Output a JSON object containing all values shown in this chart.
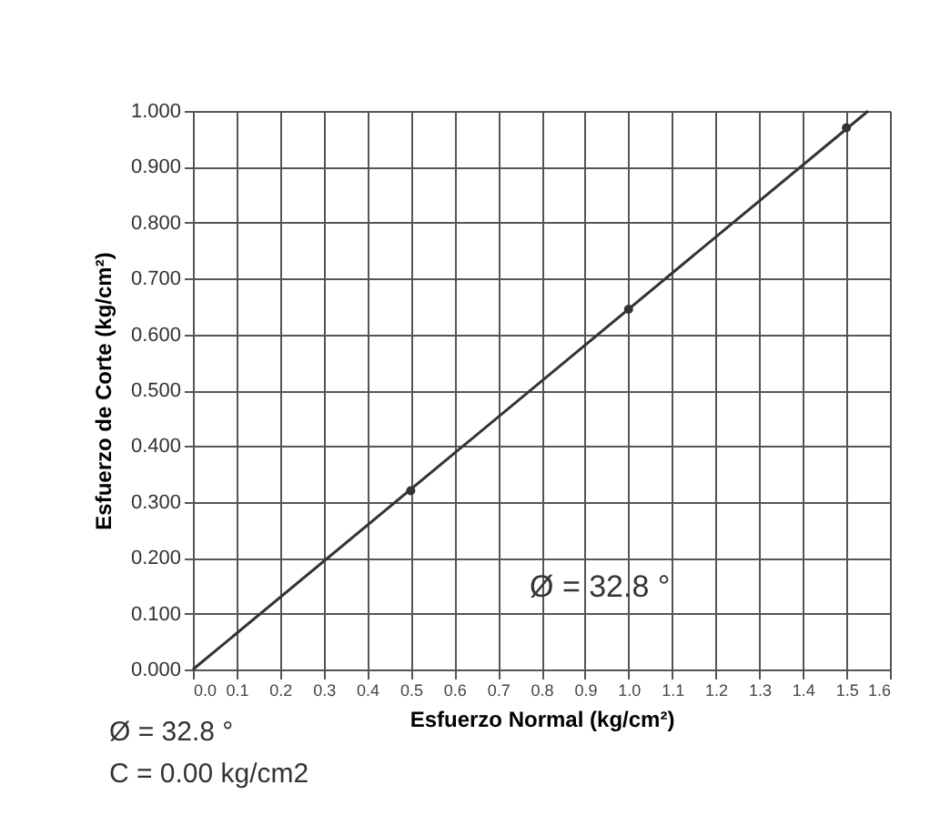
{
  "chart_data": {
    "type": "scatter",
    "xlabel": "Esfuerzo Normal (kg/cm²)",
    "ylabel": "Esfuerzo de Corte (kg/cm²)",
    "series": [
      {
        "type": "line",
        "color": "#333333",
        "x": [
          0,
          1.55
        ],
        "values": [
          0,
          1.0
        ],
        "marker": "none"
      },
      {
        "color": "#333333",
        "x": [
          0.5,
          1.0,
          1.5
        ],
        "values": [
          0.32,
          0.645,
          0.97
        ],
        "marker": "circle"
      }
    ],
    "xlim": [
      0,
      1.6
    ],
    "ylim": [
      0,
      1.0
    ],
    "xticks": [
      {
        "value": 0,
        "label": "0.0"
      },
      {
        "value": 0.1,
        "label": "0.1"
      },
      {
        "value": 0.2,
        "label": "0.2"
      },
      {
        "value": 0.3,
        "label": "0.3"
      },
      {
        "value": 0.4,
        "label": "0.4"
      },
      {
        "value": 0.5,
        "label": "0.5"
      },
      {
        "value": 0.6,
        "label": "0.6"
      },
      {
        "value": 0.7,
        "label": "0.7"
      },
      {
        "value": 0.8,
        "label": "0.8"
      },
      {
        "value": 0.9,
        "label": "0.9"
      },
      {
        "value": 1.0,
        "label": "1.0"
      },
      {
        "value": 1.1,
        "label": "1.1"
      },
      {
        "value": 1.2,
        "label": "1.2"
      },
      {
        "value": 1.3,
        "label": "1.3"
      },
      {
        "value": 1.4,
        "label": "1.4"
      },
      {
        "value": 1.5,
        "label": "1.5"
      },
      {
        "value": 1.6,
        "label": "1.6"
      }
    ],
    "yticks": [
      {
        "value": 0,
        "label": "0.000"
      },
      {
        "value": 0.1,
        "label": "0.100"
      },
      {
        "value": 0.2,
        "label": "0.200"
      },
      {
        "value": 0.3,
        "label": "0.300"
      },
      {
        "value": 0.4,
        "label": "0.400"
      },
      {
        "value": 0.5,
        "label": "0.500"
      },
      {
        "value": 0.6,
        "label": "0.600"
      },
      {
        "value": 0.7,
        "label": "0.700"
      },
      {
        "value": 0.8,
        "label": "0.800"
      },
      {
        "value": 0.9,
        "label": "0.900"
      },
      {
        "value": 1.0,
        "label": "1.000"
      }
    ],
    "grid": true,
    "annotations": [
      "Ø = 32.8   °",
      "Ø = 32.8   °",
      "C =  0.00  kg/cm2"
    ]
  }
}
